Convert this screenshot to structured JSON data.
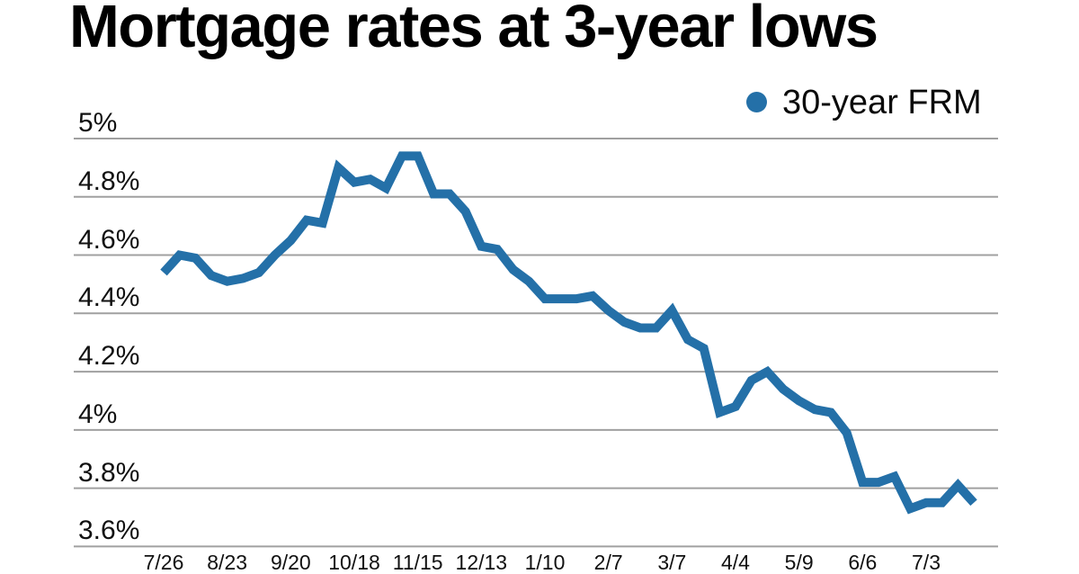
{
  "chart_data": {
    "type": "line",
    "title": "Mortgage rates at 3-year lows",
    "legend_position": "top-right",
    "unit": "%",
    "grid": "horizontal",
    "grid_color": "#a0a0a0",
    "background": "#ffffff",
    "y_tick_labels": [
      "5%",
      "4.8%",
      "4.6%",
      "4.4%",
      "4.2%",
      "4%",
      "3.8%",
      "3.6%"
    ],
    "y_tick_values": [
      5.0,
      4.8,
      4.6,
      4.4,
      4.2,
      4.0,
      3.8,
      3.6
    ],
    "ylim": [
      3.55,
      5.05
    ],
    "x_tick_labels": [
      "7/26",
      "8/23",
      "9/20",
      "10/18",
      "11/15",
      "12/13",
      "1/10",
      "2/7",
      "3/7",
      "4/4",
      "5/9",
      "6/6",
      "7/3"
    ],
    "x_label_every": 4,
    "series": [
      {
        "name": "30-year FRM",
        "color": "#2470a8",
        "values": [
          4.54,
          4.6,
          4.59,
          4.53,
          4.51,
          4.52,
          4.54,
          4.6,
          4.65,
          4.72,
          4.71,
          4.9,
          4.85,
          4.86,
          4.83,
          4.94,
          4.94,
          4.81,
          4.81,
          4.75,
          4.63,
          4.62,
          4.55,
          4.51,
          4.45,
          4.45,
          4.45,
          4.46,
          4.41,
          4.37,
          4.35,
          4.35,
          4.41,
          4.31,
          4.28,
          4.06,
          4.08,
          4.17,
          4.2,
          4.14,
          4.1,
          4.07,
          4.06,
          3.99,
          3.82,
          3.82,
          3.84,
          3.73,
          3.75,
          3.75,
          3.81,
          3.75
        ]
      }
    ]
  }
}
